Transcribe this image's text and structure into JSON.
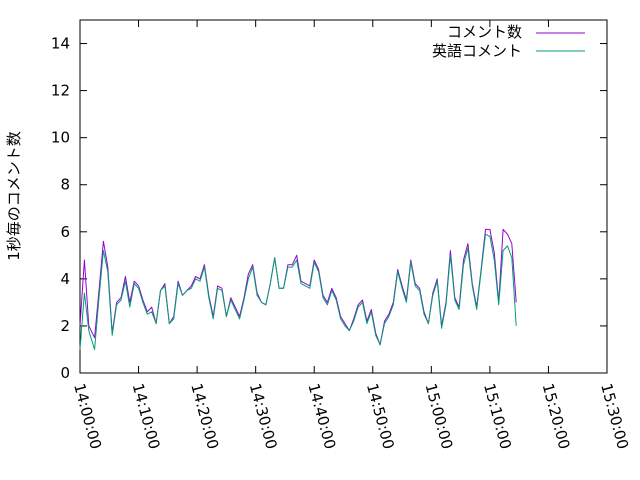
{
  "chart_data": {
    "type": "line",
    "title": "",
    "xlabel": "",
    "ylabel": "1秒毎のコメント数",
    "xlim": [
      "14:00:00",
      "15:30:00"
    ],
    "ylim": [
      0,
      15
    ],
    "x_ticks": [
      "14:00:00",
      "14:10:00",
      "14:20:00",
      "14:30:00",
      "14:40:00",
      "14:50:00",
      "15:00:00",
      "15:10:00",
      "15:20:00",
      "15:30:00"
    ],
    "y_ticks": [
      0,
      2,
      4,
      6,
      8,
      10,
      12,
      14
    ],
    "grid": false,
    "legend_position": "top-right",
    "series": [
      {
        "name": "コメント数",
        "color": "#9400d3",
        "points": [
          [
            "14:00:00",
            2.0
          ],
          [
            "14:00:45",
            4.8
          ],
          [
            "14:01:30",
            2.0
          ],
          [
            "14:02:30",
            1.5
          ],
          [
            "14:03:15",
            3.5
          ],
          [
            "14:04:00",
            5.6
          ],
          [
            "14:04:45",
            4.5
          ],
          [
            "14:05:30",
            1.7
          ],
          [
            "14:06:15",
            3.0
          ],
          [
            "14:07:00",
            3.2
          ],
          [
            "14:07:45",
            4.1
          ],
          [
            "14:08:30",
            3.0
          ],
          [
            "14:09:15",
            3.9
          ],
          [
            "14:10:00",
            3.7
          ],
          [
            "14:10:45",
            3.1
          ],
          [
            "14:11:30",
            2.6
          ],
          [
            "14:12:15",
            2.8
          ],
          [
            "14:13:00",
            2.1
          ],
          [
            "14:13:45",
            3.5
          ],
          [
            "14:14:30",
            3.8
          ],
          [
            "14:15:15",
            2.1
          ],
          [
            "14:16:00",
            2.4
          ],
          [
            "14:16:45",
            3.9
          ],
          [
            "14:17:30",
            3.3
          ],
          [
            "14:18:15",
            3.5
          ],
          [
            "14:19:00",
            3.7
          ],
          [
            "14:19:45",
            4.1
          ],
          [
            "14:20:30",
            4.0
          ],
          [
            "14:21:15",
            4.6
          ],
          [
            "14:22:00",
            3.3
          ],
          [
            "14:22:45",
            2.4
          ],
          [
            "14:23:30",
            3.7
          ],
          [
            "14:24:15",
            3.6
          ],
          [
            "14:25:00",
            2.4
          ],
          [
            "14:25:45",
            3.2
          ],
          [
            "14:26:30",
            2.8
          ],
          [
            "14:27:15",
            2.4
          ],
          [
            "14:28:00",
            3.2
          ],
          [
            "14:28:45",
            4.2
          ],
          [
            "14:29:30",
            4.6
          ],
          [
            "14:30:15",
            3.4
          ],
          [
            "14:31:00",
            3.0
          ],
          [
            "14:31:45",
            2.9
          ],
          [
            "14:32:30",
            3.8
          ],
          [
            "14:33:15",
            4.9
          ],
          [
            "14:34:00",
            3.6
          ],
          [
            "14:34:45",
            3.6
          ],
          [
            "14:35:30",
            4.6
          ],
          [
            "14:36:15",
            4.6
          ],
          [
            "14:37:00",
            5.0
          ],
          [
            "14:37:45",
            3.9
          ],
          [
            "14:38:30",
            3.8
          ],
          [
            "14:39:15",
            3.7
          ],
          [
            "14:40:00",
            4.8
          ],
          [
            "14:40:45",
            4.4
          ],
          [
            "14:41:30",
            3.3
          ],
          [
            "14:42:15",
            3.0
          ],
          [
            "14:43:00",
            3.6
          ],
          [
            "14:43:45",
            3.2
          ],
          [
            "14:44:30",
            2.4
          ],
          [
            "14:45:15",
            2.1
          ],
          [
            "14:46:00",
            1.8
          ],
          [
            "14:46:45",
            2.3
          ],
          [
            "14:47:30",
            2.9
          ],
          [
            "14:48:15",
            3.1
          ],
          [
            "14:49:00",
            2.2
          ],
          [
            "14:49:45",
            2.7
          ],
          [
            "14:50:30",
            1.7
          ],
          [
            "14:51:15",
            1.2
          ],
          [
            "14:52:00",
            2.2
          ],
          [
            "14:52:45",
            2.5
          ],
          [
            "14:53:30",
            3.0
          ],
          [
            "14:54:15",
            4.4
          ],
          [
            "14:55:00",
            3.7
          ],
          [
            "14:55:45",
            3.1
          ],
          [
            "14:56:30",
            4.8
          ],
          [
            "14:57:15",
            3.8
          ],
          [
            "14:58:00",
            3.6
          ],
          [
            "14:58:45",
            2.6
          ],
          [
            "14:59:30",
            2.1
          ],
          [
            "15:00:15",
            3.4
          ],
          [
            "15:01:00",
            4.0
          ],
          [
            "15:01:45",
            2.0
          ],
          [
            "15:02:30",
            3.0
          ],
          [
            "15:03:15",
            5.2
          ],
          [
            "15:04:00",
            3.2
          ],
          [
            "15:04:45",
            2.8
          ],
          [
            "15:05:30",
            4.8
          ],
          [
            "15:06:15",
            5.5
          ],
          [
            "15:07:00",
            3.8
          ],
          [
            "15:07:45",
            2.8
          ],
          [
            "15:08:30",
            4.4
          ],
          [
            "15:09:15",
            6.1
          ],
          [
            "15:10:00",
            6.1
          ],
          [
            "15:10:45",
            5.1
          ],
          [
            "15:11:30",
            3.0
          ],
          [
            "15:12:15",
            6.1
          ],
          [
            "15:13:00",
            5.9
          ],
          [
            "15:13:45",
            5.5
          ],
          [
            "15:14:30",
            3.0
          ]
        ]
      },
      {
        "name": "英語コメント",
        "color": "#009e73",
        "points": [
          [
            "14:00:00",
            1.0
          ],
          [
            "14:00:45",
            3.4
          ],
          [
            "14:01:30",
            1.8
          ],
          [
            "14:02:30",
            1.0
          ],
          [
            "14:03:15",
            3.2
          ],
          [
            "14:04:00",
            5.2
          ],
          [
            "14:04:45",
            4.3
          ],
          [
            "14:05:30",
            1.6
          ],
          [
            "14:06:15",
            2.9
          ],
          [
            "14:07:00",
            3.1
          ],
          [
            "14:07:45",
            3.9
          ],
          [
            "14:08:30",
            2.8
          ],
          [
            "14:09:15",
            3.8
          ],
          [
            "14:10:00",
            3.6
          ],
          [
            "14:10:45",
            3.0
          ],
          [
            "14:11:30",
            2.5
          ],
          [
            "14:12:15",
            2.6
          ],
          [
            "14:13:00",
            2.1
          ],
          [
            "14:13:45",
            3.5
          ],
          [
            "14:14:30",
            3.7
          ],
          [
            "14:15:15",
            2.1
          ],
          [
            "14:16:00",
            2.3
          ],
          [
            "14:16:45",
            3.8
          ],
          [
            "14:17:30",
            3.3
          ],
          [
            "14:18:15",
            3.5
          ],
          [
            "14:19:00",
            3.6
          ],
          [
            "14:19:45",
            4.0
          ],
          [
            "14:20:30",
            3.9
          ],
          [
            "14:21:15",
            4.5
          ],
          [
            "14:22:00",
            3.2
          ],
          [
            "14:22:45",
            2.3
          ],
          [
            "14:23:30",
            3.6
          ],
          [
            "14:24:15",
            3.5
          ],
          [
            "14:25:00",
            2.4
          ],
          [
            "14:25:45",
            3.1
          ],
          [
            "14:26:30",
            2.7
          ],
          [
            "14:27:15",
            2.3
          ],
          [
            "14:28:00",
            3.1
          ],
          [
            "14:28:45",
            4.0
          ],
          [
            "14:29:30",
            4.5
          ],
          [
            "14:30:15",
            3.3
          ],
          [
            "14:31:00",
            3.0
          ],
          [
            "14:31:45",
            2.9
          ],
          [
            "14:32:30",
            3.8
          ],
          [
            "14:33:15",
            4.9
          ],
          [
            "14:34:00",
            3.6
          ],
          [
            "14:34:45",
            3.6
          ],
          [
            "14:35:30",
            4.5
          ],
          [
            "14:36:15",
            4.5
          ],
          [
            "14:37:00",
            4.8
          ],
          [
            "14:37:45",
            3.8
          ],
          [
            "14:38:30",
            3.7
          ],
          [
            "14:39:15",
            3.6
          ],
          [
            "14:40:00",
            4.7
          ],
          [
            "14:40:45",
            4.3
          ],
          [
            "14:41:30",
            3.2
          ],
          [
            "14:42:15",
            2.9
          ],
          [
            "14:43:00",
            3.5
          ],
          [
            "14:43:45",
            3.1
          ],
          [
            "14:44:30",
            2.3
          ],
          [
            "14:45:15",
            2.0
          ],
          [
            "14:46:00",
            1.8
          ],
          [
            "14:46:45",
            2.2
          ],
          [
            "14:47:30",
            2.8
          ],
          [
            "14:48:15",
            3.0
          ],
          [
            "14:49:00",
            2.1
          ],
          [
            "14:49:45",
            2.6
          ],
          [
            "14:50:30",
            1.6
          ],
          [
            "14:51:15",
            1.2
          ],
          [
            "14:52:00",
            2.1
          ],
          [
            "14:52:45",
            2.4
          ],
          [
            "14:53:30",
            2.9
          ],
          [
            "14:54:15",
            4.3
          ],
          [
            "14:55:00",
            3.6
          ],
          [
            "14:55:45",
            3.0
          ],
          [
            "14:56:30",
            4.7
          ],
          [
            "14:57:15",
            3.7
          ],
          [
            "14:58:00",
            3.5
          ],
          [
            "14:58:45",
            2.5
          ],
          [
            "14:59:30",
            2.1
          ],
          [
            "15:00:15",
            3.3
          ],
          [
            "15:01:00",
            3.9
          ],
          [
            "15:01:45",
            1.9
          ],
          [
            "15:02:30",
            2.9
          ],
          [
            "15:03:15",
            5.0
          ],
          [
            "15:04:00",
            3.1
          ],
          [
            "15:04:45",
            2.7
          ],
          [
            "15:05:30",
            4.6
          ],
          [
            "15:06:15",
            5.3
          ],
          [
            "15:07:00",
            3.7
          ],
          [
            "15:07:45",
            2.7
          ],
          [
            "15:08:30",
            4.3
          ],
          [
            "15:09:15",
            5.9
          ],
          [
            "15:10:00",
            5.8
          ],
          [
            "15:10:45",
            4.8
          ],
          [
            "15:11:30",
            2.9
          ],
          [
            "15:12:15",
            5.2
          ],
          [
            "15:13:00",
            5.4
          ],
          [
            "15:13:45",
            4.9
          ],
          [
            "15:14:30",
            2.0
          ]
        ]
      }
    ]
  }
}
